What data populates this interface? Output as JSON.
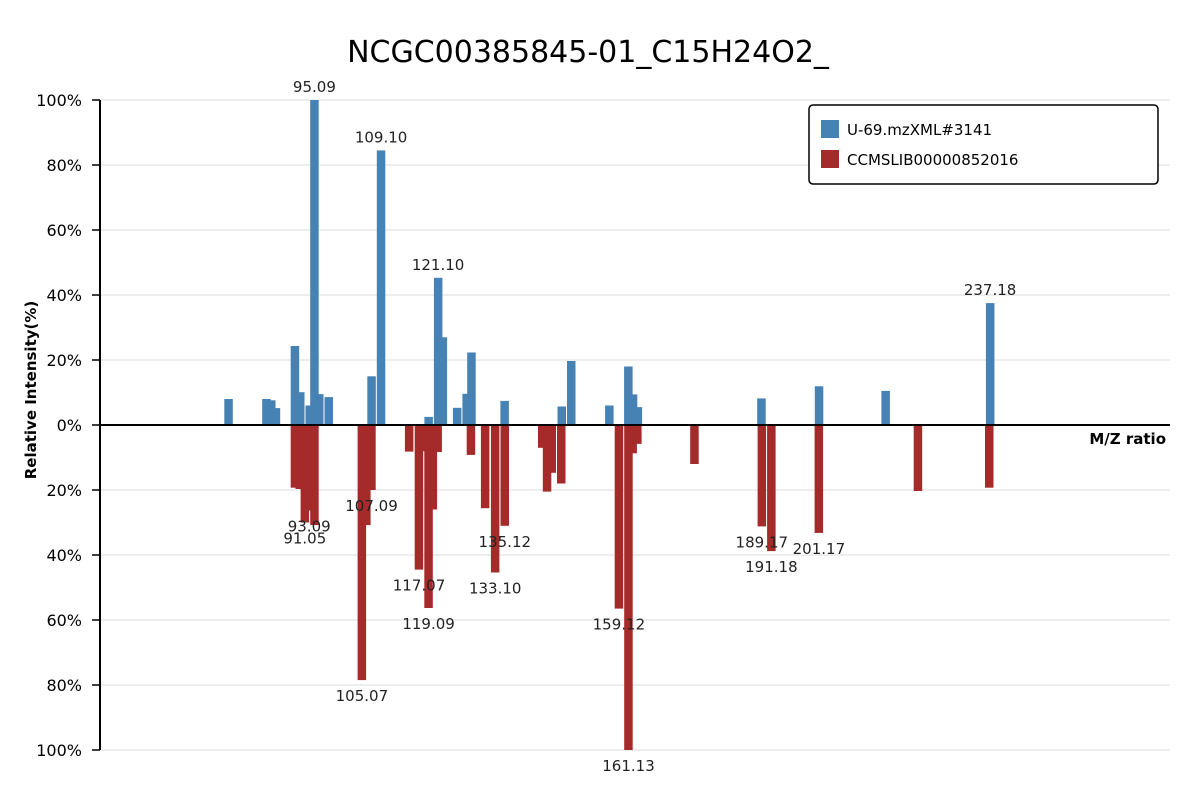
{
  "chart_data": {
    "type": "bar",
    "title": "NCGC00385845-01_C15H24O2_",
    "xlabel": "M/Z ratio",
    "ylabel": "Relative Intensity(%)",
    "ylim_top": [
      0,
      100
    ],
    "ylim_bottom": [
      0,
      100
    ],
    "y_ticks_top": [
      "0%",
      "20%",
      "40%",
      "60%",
      "80%",
      "100%"
    ],
    "y_ticks_bottom": [
      "20%",
      "40%",
      "60%",
      "80%",
      "100%"
    ],
    "xlim": [
      50,
      275
    ],
    "grid": true,
    "legend_position": "top-right",
    "series": [
      {
        "name": "U-69.mzXML#3141",
        "color": "#4682b4",
        "direction": "up",
        "peaks": [
          {
            "mz": 77.04,
            "value": 8
          },
          {
            "mz": 85.0,
            "value": 8
          },
          {
            "mz": 86.0,
            "value": 7.6
          },
          {
            "mz": 87.0,
            "value": 5.2
          },
          {
            "mz": 91.0,
            "value": 24.3
          },
          {
            "mz": 92.1,
            "value": 10.1
          },
          {
            "mz": 94.1,
            "value": 6
          },
          {
            "mz": 95.09,
            "value": 100,
            "label": "95.09"
          },
          {
            "mz": 96.1,
            "value": 9.5
          },
          {
            "mz": 98.1,
            "value": 8.6
          },
          {
            "mz": 107.1,
            "value": 15
          },
          {
            "mz": 109.1,
            "value": 84.5,
            "label": "109.10"
          },
          {
            "mz": 119.1,
            "value": 2.5
          },
          {
            "mz": 121.1,
            "value": 45.3,
            "label": "121.10"
          },
          {
            "mz": 122.1,
            "value": 27
          },
          {
            "mz": 125.1,
            "value": 5.3
          },
          {
            "mz": 127.1,
            "value": 9.6
          },
          {
            "mz": 128.1,
            "value": 22.3
          },
          {
            "mz": 135.1,
            "value": 7.4
          },
          {
            "mz": 147.1,
            "value": 5.7
          },
          {
            "mz": 149.1,
            "value": 19.7
          },
          {
            "mz": 157.1,
            "value": 6
          },
          {
            "mz": 161.1,
            "value": 18
          },
          {
            "mz": 162.1,
            "value": 9.4
          },
          {
            "mz": 163.1,
            "value": 5.5
          },
          {
            "mz": 189.1,
            "value": 8.2
          },
          {
            "mz": 201.2,
            "value": 11.9
          },
          {
            "mz": 215.2,
            "value": 10.5
          },
          {
            "mz": 237.18,
            "value": 37.5,
            "label": "237.18"
          }
        ]
      },
      {
        "name": "CCMSLIB00000852016",
        "color": "#a52a2a",
        "direction": "down",
        "peaks": [
          {
            "mz": 91.0,
            "value": 19.3
          },
          {
            "mz": 92.0,
            "value": 19.7
          },
          {
            "mz": 93.07,
            "value": 30
          },
          {
            "mz": 94.0,
            "value": 26.3
          },
          {
            "mz": 95.09,
            "value": 30.8
          },
          {
            "mz": 105.07,
            "value": 78.5,
            "label": "105.07"
          },
          {
            "mz": 106.0,
            "value": 30.8
          },
          {
            "mz": 107.09,
            "value": 20,
            "label": "107.09"
          },
          {
            "mz": 115.0,
            "value": 8.2
          },
          {
            "mz": 117.07,
            "value": 44.5,
            "label": "117.07"
          },
          {
            "mz": 118.0,
            "value": 8.1
          },
          {
            "mz": 119.09,
            "value": 56.3,
            "label": "119.09"
          },
          {
            "mz": 120.0,
            "value": 26
          },
          {
            "mz": 121.0,
            "value": 8.3
          },
          {
            "mz": 128.0,
            "value": 9.2
          },
          {
            "mz": 131.0,
            "value": 25.6
          },
          {
            "mz": 133.1,
            "value": 45.4,
            "label": "133.10"
          },
          {
            "mz": 135.12,
            "value": 31,
            "label": "135.12"
          },
          {
            "mz": 143.0,
            "value": 7
          },
          {
            "mz": 144.0,
            "value": 20.5
          },
          {
            "mz": 145.0,
            "value": 14.7
          },
          {
            "mz": 147.0,
            "value": 18
          },
          {
            "mz": 159.12,
            "value": 56.5,
            "label": "159.12"
          },
          {
            "mz": 161.13,
            "value": 100,
            "label": "161.13"
          },
          {
            "mz": 162.0,
            "value": 8.7
          },
          {
            "mz": 163.0,
            "value": 5.8
          },
          {
            "mz": 175.0,
            "value": 12
          },
          {
            "mz": 189.17,
            "value": 31.2,
            "label": "189.17"
          },
          {
            "mz": 191.18,
            "value": 38.8,
            "label": "191.18"
          },
          {
            "mz": 201.17,
            "value": 33.2,
            "label": "201.17"
          },
          {
            "mz": 222.0,
            "value": 20.3
          },
          {
            "mz": 237.0,
            "value": 19.3
          }
        ]
      }
    ],
    "extra_labels": [
      {
        "text": "91.05",
        "series": 1,
        "mz": 93.07
      },
      {
        "text": "93.09",
        "series": 1,
        "mz": 94.0
      }
    ]
  }
}
